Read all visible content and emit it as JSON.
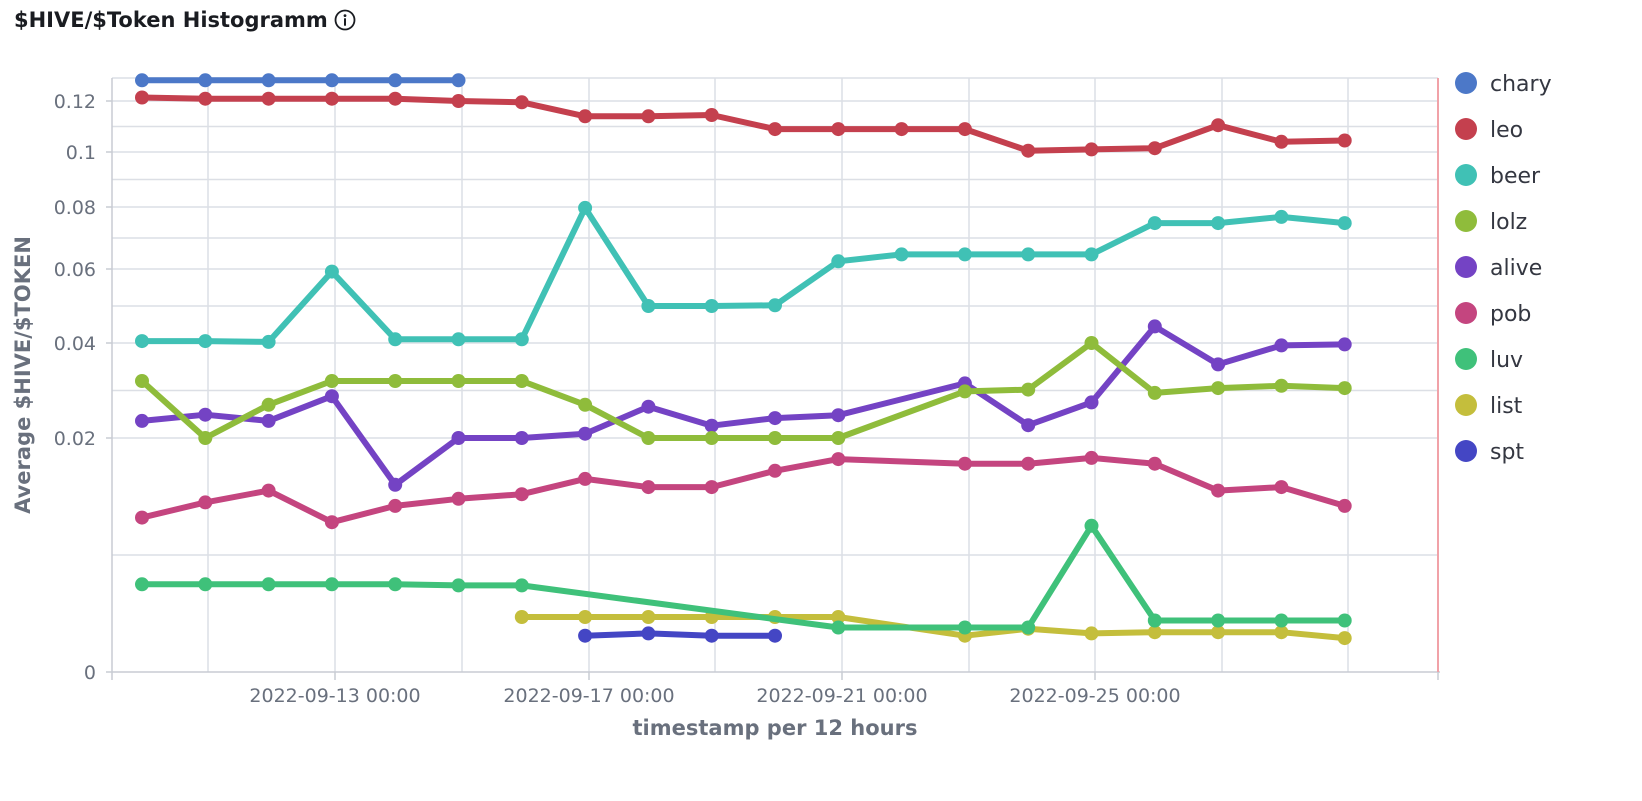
{
  "title": "$HIVE/$Token Histogramm",
  "icons": {
    "info": "info-icon"
  },
  "chart_data": {
    "type": "line",
    "xlabel": "timestamp per 12 hours",
    "ylabel": "Average $HIVE/$TOKEN",
    "y_ticks": [
      "0",
      "0.02",
      "0.04",
      "0.06",
      "0.08",
      "0.1",
      "0.12"
    ],
    "x_ticks": [
      "2022-09-13 00:00",
      "2022-09-17 00:00",
      "2022-09-21 00:00",
      "2022-09-25 00:00"
    ],
    "x": [
      "2022-09-11",
      "2022-09-12",
      "2022-09-13",
      "2022-09-14",
      "2022-09-15",
      "2022-09-16",
      "2022-09-17",
      "2022-09-18",
      "2022-09-19",
      "2022-09-20",
      "2022-09-21",
      "2022-09-22",
      "2022-09-23",
      "2022-09-24",
      "2022-09-25",
      "2022-09-26",
      "2022-09-27",
      "2022-09-28",
      "2022-09-29",
      "2022-09-30"
    ],
    "legend_position": "right",
    "grid": true,
    "series": [
      {
        "name": "chary",
        "color": "#4C78C8",
        "values": [
          0.129,
          0.129,
          0.129,
          0.129,
          0.129,
          0.129,
          null,
          null,
          null,
          null,
          null,
          null,
          null,
          null,
          null,
          null,
          null,
          null,
          null,
          null
        ]
      },
      {
        "name": "leo",
        "color": "#C4404E",
        "values": [
          0.1215,
          0.121,
          0.121,
          0.121,
          0.121,
          0.12,
          0.1195,
          0.114,
          0.114,
          0.1145,
          0.109,
          0.109,
          0.109,
          0.109,
          0.1005,
          0.101,
          0.1015,
          0.1105,
          0.104,
          0.1045
        ]
      },
      {
        "name": "beer",
        "color": "#40C1B5",
        "values": [
          0.0405,
          0.0405,
          0.0403,
          0.0593,
          0.041,
          0.041,
          0.041,
          0.0797,
          0.05,
          0.05,
          0.0502,
          0.0625,
          0.0647,
          0.0647,
          0.0647,
          0.0647,
          0.0748,
          0.0748,
          0.0768,
          0.0748
        ]
      },
      {
        "name": "lolz",
        "color": "#8FBC3B",
        "values": [
          0.032,
          0.02,
          0.027,
          0.032,
          0.032,
          0.032,
          0.032,
          0.027,
          0.02,
          0.02,
          0.02,
          0.02,
          null,
          0.0298,
          0.0302,
          0.04,
          0.0295,
          0.0305,
          0.031,
          0.0305
        ]
      },
      {
        "name": "alive",
        "color": "#7443C4",
        "values": [
          0.0236,
          0.0249,
          0.0236,
          0.0288,
          0.016,
          0.02,
          0.02,
          0.0209,
          0.0266,
          0.0226,
          0.0242,
          0.0248,
          null,
          0.0315,
          0.0227,
          0.0275,
          0.0445,
          0.0355,
          0.0395,
          0.0397
        ]
      },
      {
        "name": "pob",
        "color": "#C4457F",
        "values": [
          0.0132,
          0.0145,
          0.0155,
          0.0128,
          0.0142,
          0.0148,
          0.0152,
          0.0165,
          0.0158,
          0.0158,
          0.0172,
          0.0182,
          null,
          0.0178,
          0.0178,
          0.0183,
          0.0178,
          0.0155,
          0.0158,
          0.0142
        ]
      },
      {
        "name": "luv",
        "color": "#3FC17A",
        "values": [
          0.0075,
          0.0075,
          0.0075,
          0.0075,
          0.0075,
          0.0074,
          0.0074,
          null,
          null,
          null,
          null,
          0.0038,
          null,
          0.0038,
          0.0038,
          0.0125,
          0.0044,
          0.0044,
          0.0044,
          0.0044
        ]
      },
      {
        "name": "list",
        "color": "#C4BE3C",
        "values": [
          null,
          null,
          null,
          null,
          null,
          null,
          0.0047,
          0.0047,
          0.0047,
          0.0047,
          0.0047,
          0.0047,
          null,
          0.0031,
          0.0037,
          0.0033,
          0.0034,
          0.0034,
          0.0034,
          0.0029
        ]
      },
      {
        "name": "spt",
        "color": "#4446C4",
        "values": [
          null,
          null,
          null,
          null,
          null,
          null,
          null,
          0.0031,
          0.0033,
          0.0031,
          0.0031,
          null,
          null,
          null,
          null,
          null,
          null,
          null,
          null,
          null
        ]
      }
    ]
  }
}
